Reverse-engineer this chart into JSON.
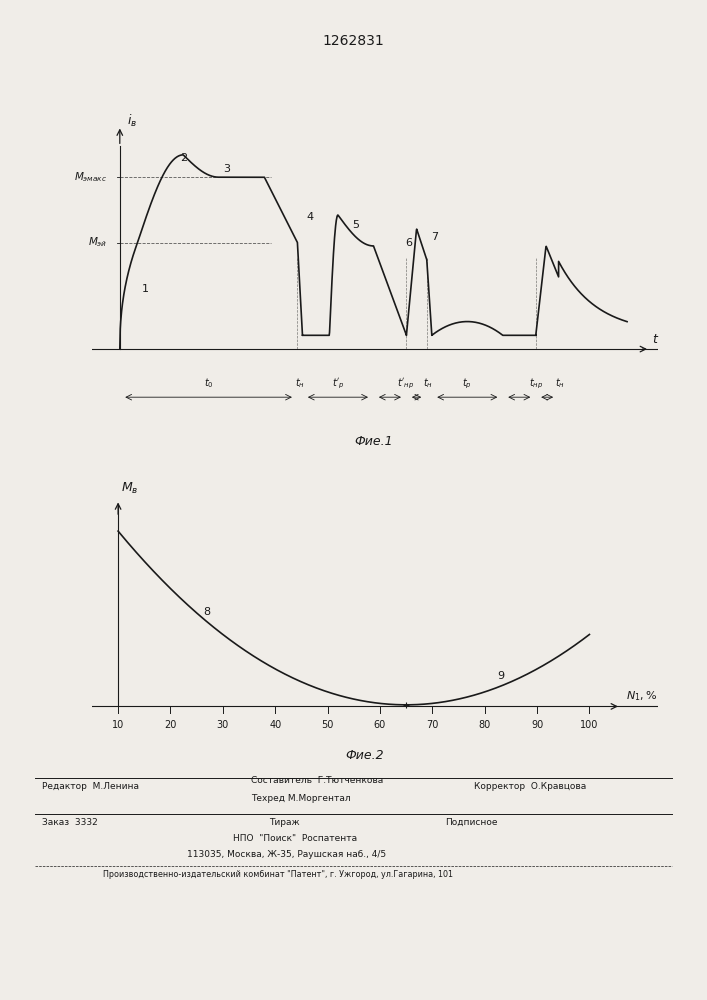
{
  "title": "1262831",
  "fig1_caption": "Фиe.1",
  "fig2_caption": "Фиe.2",
  "fig1_ylabel": "iв",
  "fig2_ylabel": "Mв",
  "fig2_xlabel": "N1, %",
  "label_Memax": "Mэмакс",
  "label_Meq": "Mэй",
  "background_color": "#f0ede8",
  "line_color": "#1a1a1a",
  "x_ticks_fig2": [
    10,
    20,
    30,
    40,
    50,
    60,
    70,
    80,
    90,
    100
  ]
}
